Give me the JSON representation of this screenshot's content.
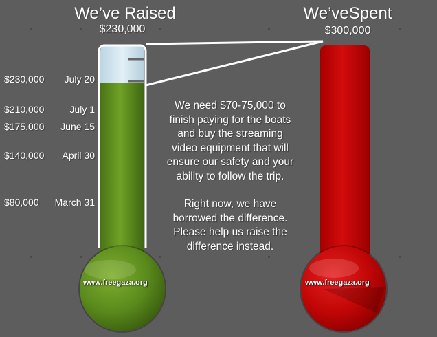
{
  "raised": {
    "heading": "We’ve Raised",
    "amount": "$230,000",
    "fill_color": "#5f8f1e",
    "empty_color": "#cfe2ec",
    "fill_fraction": 0.82,
    "milestones": [
      {
        "amount": "$230,000",
        "date": "July 20"
      },
      {
        "amount": "$210,000",
        "date": "July 1"
      },
      {
        "amount": "$175,000",
        "date": "June 15"
      },
      {
        "amount": "$140,000",
        "date": "April 30"
      },
      {
        "amount": "$80,000",
        "date": "March 31"
      }
    ],
    "site_label": "www.freegaza.org"
  },
  "spent": {
    "heading": "We’veSpent",
    "amount": "$300,000",
    "fill_color": "#c00000",
    "fill_fraction": 1.0,
    "site_label": "www.freegaza.org"
  },
  "message": {
    "paragraph_1": "We need $70-75,000 to finish paying for the boats and buy the streaming video equipment that will ensure our safety and your ability to follow the trip.",
    "paragraph_2": "Right now, we have borrowed the difference. Please help us raise the difference instead."
  },
  "colors": {
    "background": "#5d5d5d",
    "text": "#ffffff",
    "outline": "#ffffff"
  }
}
